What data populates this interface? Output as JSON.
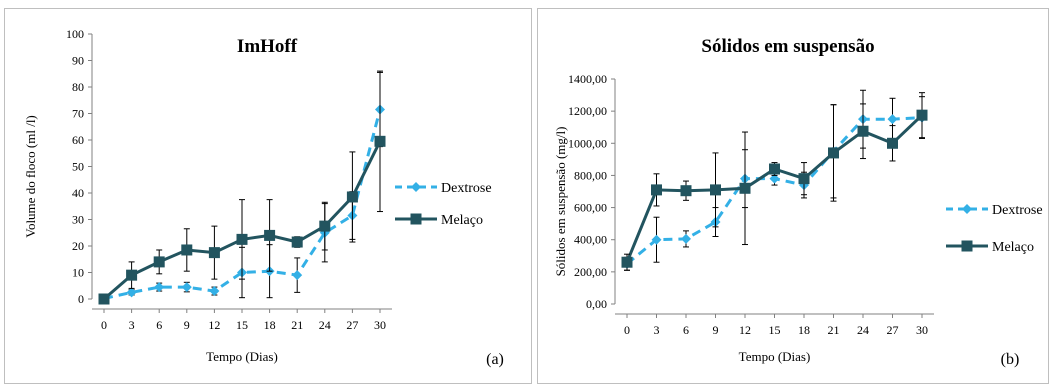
{
  "colors": {
    "dextrose": "#33b0e6",
    "melaco": "#22545f",
    "axis": "#808080",
    "error": "#000000"
  },
  "chart_data": [
    {
      "type": "line",
      "title": "ImHoff",
      "xlabel": "Tempo (Dias)",
      "ylabel": "Volume do floco (ml /l)",
      "panel_label": "(a)",
      "x": [
        0,
        3,
        6,
        9,
        12,
        15,
        18,
        21,
        24,
        27,
        30
      ],
      "x_ticks": [
        "0",
        "3",
        "6",
        "9",
        "12",
        "15",
        "18",
        "21",
        "24",
        "27",
        "30"
      ],
      "ylim": [
        0,
        100
      ],
      "y_ticks": [
        "0",
        "10",
        "20",
        "30",
        "40",
        "50",
        "60",
        "70",
        "80",
        "90",
        "100"
      ],
      "y_tick_values": [
        0,
        10,
        20,
        30,
        40,
        50,
        60,
        70,
        80,
        90,
        100
      ],
      "legend_position": "right",
      "series": [
        {
          "name": "Dextrose",
          "style": "dashed",
          "marker": "diamond",
          "values": [
            0.2,
            2.5,
            4.5,
            4.5,
            3,
            10,
            10.5,
            9,
            25,
            31.5,
            71.5
          ],
          "errors": [
            0,
            1,
            1.5,
            1.8,
            1.5,
            9.5,
            10,
            6.5,
            11,
            9,
            14
          ]
        },
        {
          "name": "Melaço",
          "style": "solid",
          "marker": "square",
          "values": [
            0,
            9,
            14,
            18.5,
            17.5,
            22.5,
            24,
            21.5,
            27.5,
            38.5,
            59.5
          ],
          "errors": [
            0,
            5,
            4.5,
            8,
            10,
            15,
            13.5,
            2,
            9,
            17,
            26.5
          ]
        }
      ]
    },
    {
      "type": "line",
      "title": "Sólidos em suspensão",
      "xlabel": "Tempo (Dias)",
      "ylabel": "Sólidos em suspensão (mg/l)",
      "panel_label": "(b)",
      "x": [
        0,
        3,
        6,
        9,
        12,
        15,
        18,
        21,
        24,
        27,
        30
      ],
      "x_ticks": [
        "0",
        "3",
        "6",
        "9",
        "12",
        "15",
        "18",
        "21",
        "24",
        "27",
        "30"
      ],
      "ylim": [
        0,
        1400
      ],
      "y_ticks": [
        "0,00",
        "200,00",
        "400,00",
        "600,00",
        "800,00",
        "1000,00",
        "1200,00",
        "1400,00"
      ],
      "y_tick_values": [
        0,
        200,
        400,
        600,
        800,
        1000,
        1200,
        1400
      ],
      "legend_position": "right",
      "series": [
        {
          "name": "Dextrose",
          "style": "dashed",
          "marker": "diamond",
          "values": [
            250,
            400,
            405,
            510,
            780,
            780,
            740,
            950,
            1150,
            1150,
            1160
          ],
          "errors": [
            40,
            140,
            50,
            90,
            180,
            40,
            80,
            290,
            180,
            130,
            130
          ]
        },
        {
          "name": "Melaço",
          "style": "solid",
          "marker": "square",
          "values": [
            260,
            710,
            705,
            710,
            720,
            840,
            780,
            940,
            1075,
            1000,
            1175
          ],
          "errors": [
            50,
            100,
            60,
            230,
            350,
            40,
            100,
            300,
            170,
            110,
            140
          ]
        }
      ]
    }
  ]
}
